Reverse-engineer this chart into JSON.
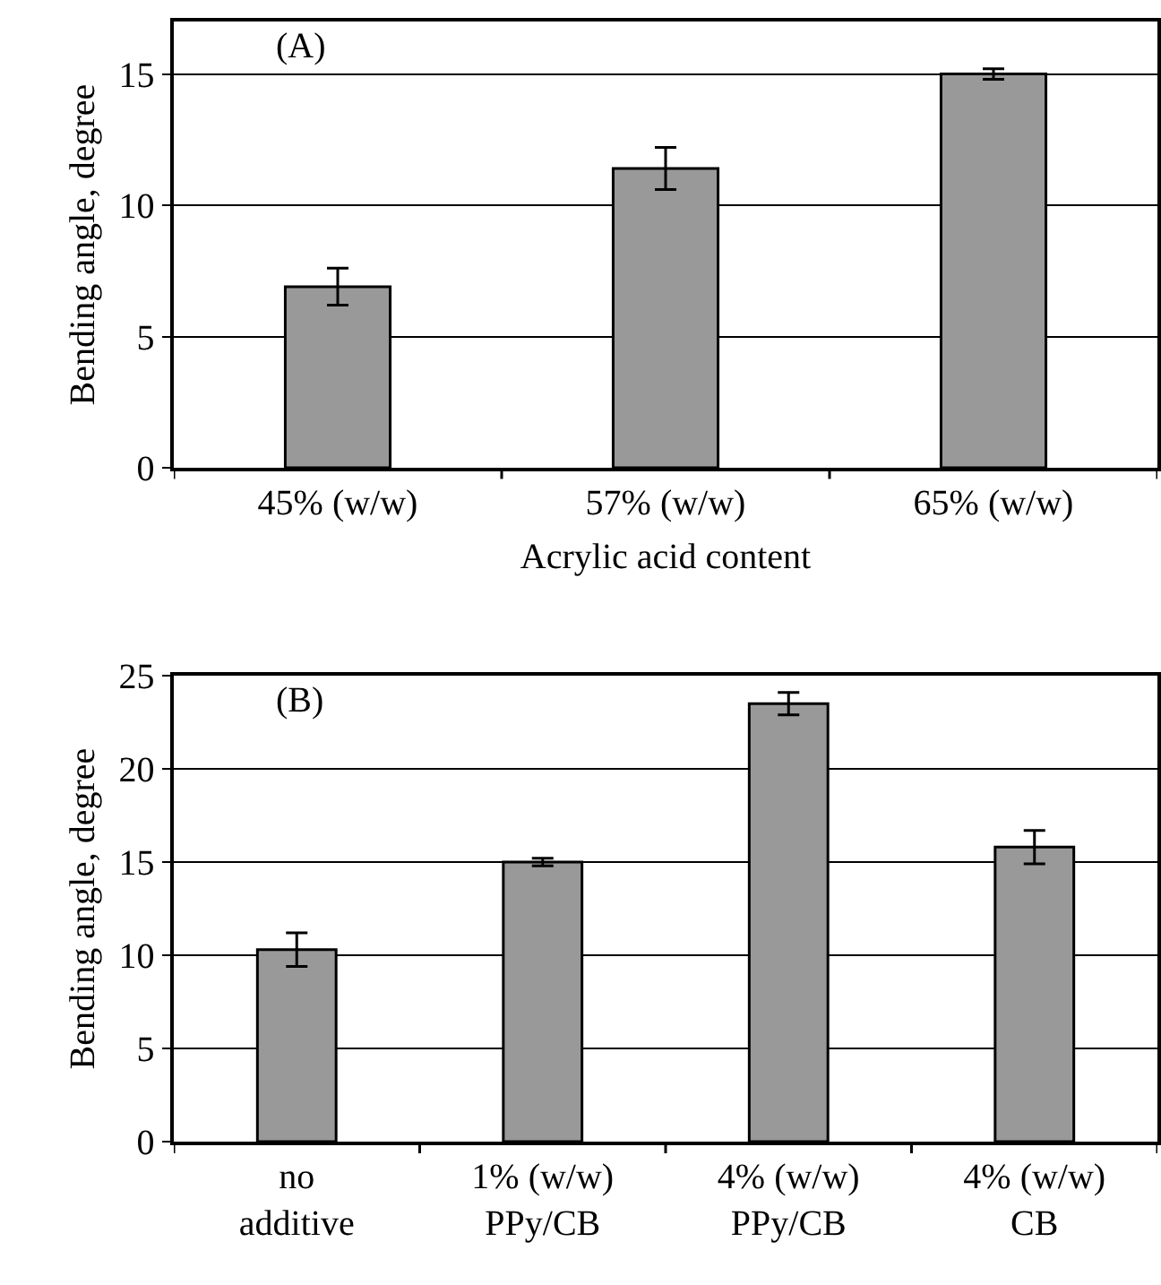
{
  "chart_data": [
    {
      "type": "bar",
      "categories": [
        "45% (w/w)",
        "57% (w/w)",
        "65% (w/w)"
      ],
      "values": [
        6.9,
        11.4,
        15.0
      ],
      "errors": [
        0.7,
        0.8,
        0.2
      ],
      "color": "#999999",
      "xlabel": "Acrylic acid content",
      "ylabel": "Bending angle, degree",
      "ylim": [
        0,
        17
      ],
      "yticks": [
        0,
        5,
        10,
        15
      ],
      "grid": "y",
      "annotations": [
        "(A)"
      ]
    },
    {
      "type": "bar",
      "categories": [
        "no\nadditive",
        "1% (w/w)\nPPy/CB",
        "4% (w/w)\nPPy/CB",
        "4% (w/w)\nCB"
      ],
      "values": [
        10.3,
        15.0,
        23.5,
        15.8
      ],
      "errors": [
        0.9,
        0.2,
        0.6,
        0.9
      ],
      "color": "#999999",
      "ylabel": "Bending angle, degree",
      "ylim": [
        0,
        25
      ],
      "yticks": [
        0,
        5,
        10,
        15,
        20,
        25
      ],
      "grid": "y",
      "annotations": [
        "(B)"
      ]
    }
  ]
}
